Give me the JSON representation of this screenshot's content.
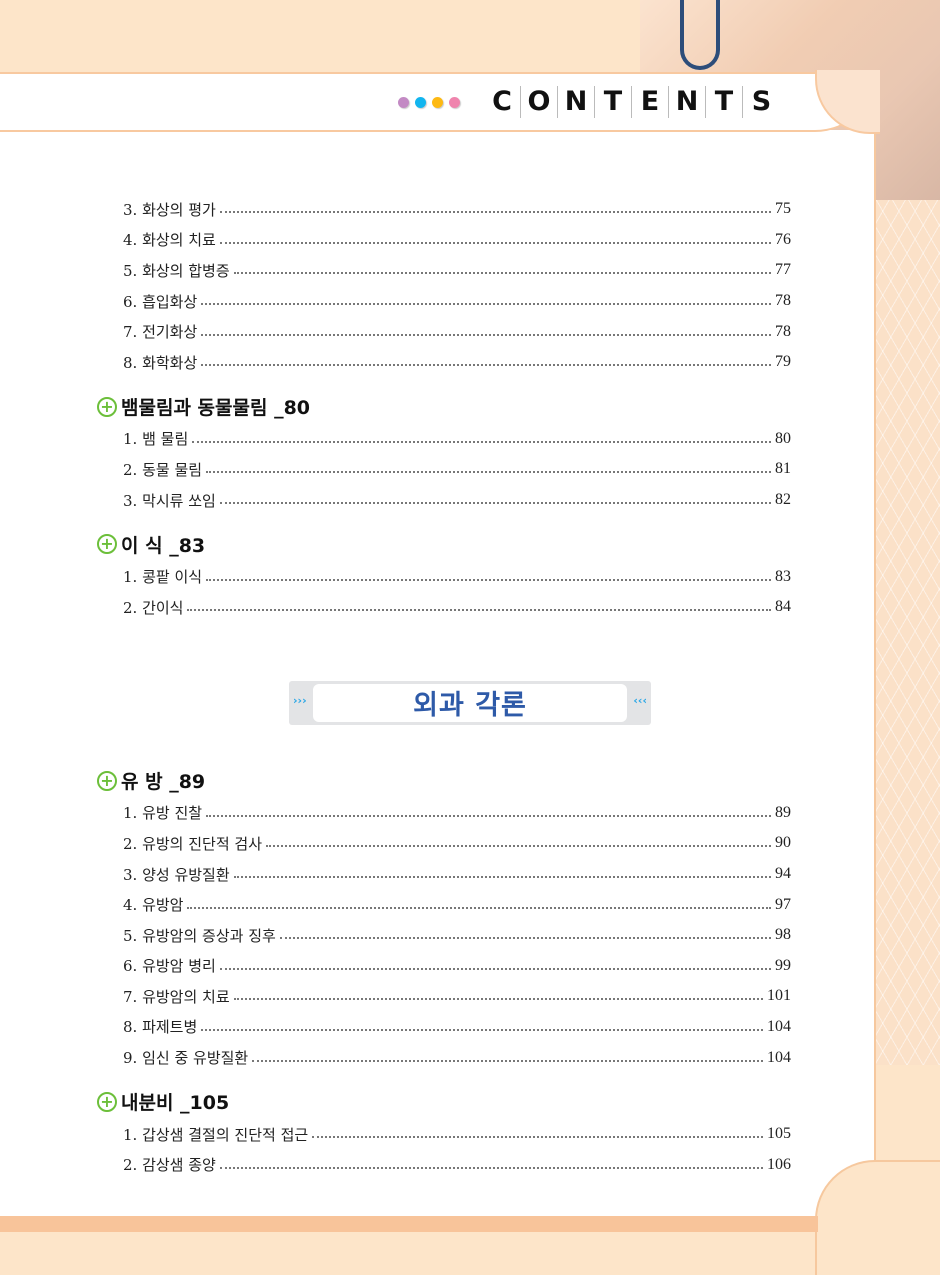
{
  "header": {
    "title_letters": [
      "C",
      "O",
      "N",
      "T",
      "E",
      "N",
      "T",
      "S"
    ],
    "dot_colors": [
      "#c38ac4",
      "#12b5ef",
      "#fdb913",
      "#ef84ad"
    ]
  },
  "sections": [
    {
      "heading": "",
      "items": [
        {
          "label": "3. 화상의 평가",
          "page": "75"
        },
        {
          "label": "4. 화상의 치료",
          "page": "76"
        },
        {
          "label": "5. 화상의 합병증",
          "page": "77"
        },
        {
          "label": "6. 흡입화상",
          "page": "78"
        },
        {
          "label": "7. 전기화상",
          "page": "78"
        },
        {
          "label": "8. 화학화상",
          "page": "79"
        }
      ]
    },
    {
      "heading": "뱀물림과 동물물림 _80",
      "items": [
        {
          "label": "1. 뱀 물림",
          "page": "80"
        },
        {
          "label": "2. 동물 물림",
          "page": "81"
        },
        {
          "label": "3. 막시류 쏘임",
          "page": "82"
        }
      ]
    },
    {
      "heading": "이 식 _83",
      "items": [
        {
          "label": "1. 콩팥 이식",
          "page": "83"
        },
        {
          "label": "2. 간이식",
          "page": "84"
        }
      ]
    }
  ],
  "part_banner": {
    "title": "외과 각론",
    "left_arrows": "›››",
    "right_arrows": "‹‹‹"
  },
  "sections2": [
    {
      "heading": "유 방 _89",
      "items": [
        {
          "label": "1. 유방 진찰",
          "page": "89"
        },
        {
          "label": "2. 유방의 진단적 검사",
          "page": "90"
        },
        {
          "label": "3. 양성 유방질환",
          "page": "94"
        },
        {
          "label": "4. 유방암",
          "page": "97"
        },
        {
          "label": "5. 유방암의 증상과 징후",
          "page": "98"
        },
        {
          "label": "6. 유방암 병리",
          "page": "99"
        },
        {
          "label": "7. 유방암의 치료",
          "page": "101"
        },
        {
          "label": "8. 파제트병",
          "page": "104"
        },
        {
          "label": "9. 임신 중 유방질환",
          "page": "104"
        }
      ]
    },
    {
      "heading": "내분비 _105",
      "items": [
        {
          "label": "1. 갑상샘 결절의 진단적 접근",
          "page": "105"
        },
        {
          "label": "2. 감상샘 종양",
          "page": "106"
        }
      ]
    }
  ],
  "icons": {
    "section_marker": "plus-circle-icon"
  }
}
